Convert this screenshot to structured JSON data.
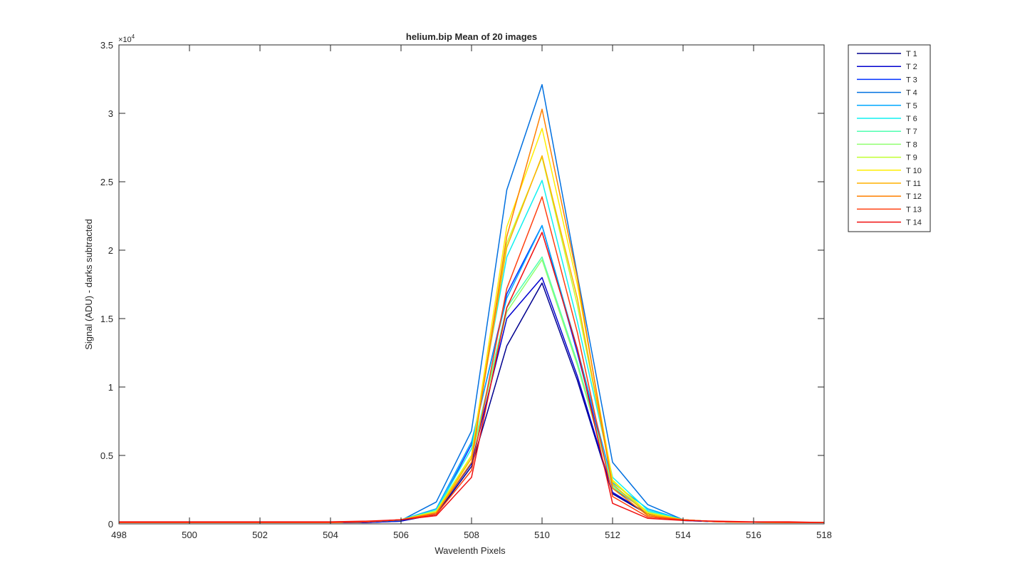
{
  "chart_data": {
    "type": "line",
    "title": "helium.bip  Mean of 20 images",
    "xlabel": "Wavelenth Pixels",
    "ylabel": "Signal (ADU) - darks subtracted",
    "xlim": [
      498,
      518
    ],
    "ylim": [
      0,
      35000
    ],
    "x_ticks": [
      498,
      500,
      502,
      504,
      506,
      508,
      510,
      512,
      514,
      516,
      518
    ],
    "y_ticks": [
      0,
      5000,
      10000,
      15000,
      20000,
      25000,
      30000,
      35000
    ],
    "y_tick_labels": [
      "0",
      "0.5",
      "1",
      "1.5",
      "2",
      "2.5",
      "3",
      "3.5"
    ],
    "y_exponent_base": "×10",
    "y_exponent_power": "4",
    "legend_position": "outside-top-right",
    "grid": false,
    "x": [
      498,
      499,
      500,
      501,
      502,
      503,
      504,
      505,
      506,
      507,
      508,
      509,
      510,
      511,
      512,
      513,
      514,
      515,
      516,
      517,
      518
    ],
    "series": [
      {
        "name": "T 1",
        "color": "#00008f",
        "values": [
          100,
          100,
          100,
          100,
          100,
          100,
          100,
          100,
          200,
          700,
          4200,
          13000,
          17600,
          10500,
          2200,
          700,
          250,
          150,
          120,
          100,
          100
        ]
      },
      {
        "name": "T 2",
        "color": "#0000cf",
        "values": [
          100,
          100,
          100,
          100,
          100,
          100,
          100,
          100,
          200,
          800,
          4400,
          15000,
          18000,
          10800,
          2300,
          750,
          250,
          150,
          120,
          100,
          100
        ]
      },
      {
        "name": "T 3",
        "color": "#0030ff",
        "values": [
          100,
          100,
          100,
          100,
          100,
          100,
          100,
          150,
          250,
          900,
          5800,
          16800,
          21800,
          12500,
          2600,
          900,
          300,
          150,
          120,
          100,
          100
        ]
      },
      {
        "name": "T 4",
        "color": "#0070e0",
        "values": [
          100,
          100,
          100,
          100,
          100,
          100,
          100,
          150,
          250,
          1600,
          6800,
          24400,
          32100,
          18200,
          4500,
          1400,
          300,
          150,
          120,
          100,
          100
        ]
      },
      {
        "name": "T 5",
        "color": "#00a8ff",
        "values": [
          100,
          100,
          100,
          100,
          100,
          100,
          100,
          150,
          300,
          1100,
          6000,
          16500,
          21800,
          12800,
          3000,
          1100,
          300,
          150,
          120,
          100,
          100
        ]
      },
      {
        "name": "T 6",
        "color": "#10f0f0",
        "values": [
          100,
          100,
          100,
          100,
          100,
          100,
          100,
          150,
          300,
          1000,
          5500,
          19500,
          25100,
          14800,
          3400,
          1000,
          300,
          150,
          120,
          100,
          100
        ]
      },
      {
        "name": "T 7",
        "color": "#50ffb0",
        "values": [
          100,
          100,
          100,
          100,
          100,
          100,
          100,
          150,
          300,
          1000,
          5000,
          15800,
          19500,
          11800,
          2800,
          900,
          300,
          150,
          120,
          100,
          100
        ]
      },
      {
        "name": "T 8",
        "color": "#90ff70",
        "values": [
          100,
          100,
          100,
          100,
          100,
          100,
          100,
          150,
          300,
          900,
          4800,
          15500,
          19300,
          11600,
          2700,
          850,
          300,
          150,
          120,
          100,
          100
        ]
      },
      {
        "name": "T 9",
        "color": "#c0ff30",
        "values": [
          100,
          100,
          100,
          100,
          100,
          100,
          100,
          150,
          300,
          900,
          5000,
          20500,
          26800,
          16000,
          3100,
          800,
          300,
          150,
          120,
          100,
          100
        ]
      },
      {
        "name": "T 10",
        "color": "#ffee00",
        "values": [
          100,
          100,
          100,
          100,
          100,
          100,
          100,
          150,
          300,
          900,
          5000,
          21700,
          28900,
          17500,
          3200,
          800,
          300,
          150,
          120,
          100,
          100
        ]
      },
      {
        "name": "T 11",
        "color": "#ffb000",
        "values": [
          100,
          100,
          100,
          100,
          100,
          100,
          100,
          150,
          300,
          800,
          4800,
          20200,
          26900,
          16500,
          2900,
          700,
          300,
          150,
          120,
          100,
          100
        ]
      },
      {
        "name": "T 12",
        "color": "#ff8000",
        "values": [
          100,
          100,
          100,
          100,
          100,
          100,
          100,
          150,
          300,
          800,
          4500,
          21000,
          30300,
          18000,
          2600,
          600,
          300,
          150,
          120,
          100,
          100
        ]
      },
      {
        "name": "T 13",
        "color": "#ff4010",
        "values": [
          100,
          100,
          100,
          100,
          100,
          100,
          100,
          150,
          300,
          700,
          3900,
          17200,
          23900,
          14000,
          2000,
          500,
          300,
          150,
          120,
          100,
          100
        ]
      },
      {
        "name": "T 14",
        "color": "#f01010",
        "values": [
          150,
          150,
          150,
          150,
          150,
          150,
          150,
          200,
          300,
          600,
          3400,
          15800,
          21300,
          12800,
          1500,
          400,
          250,
          200,
          150,
          150,
          100
        ]
      }
    ]
  }
}
